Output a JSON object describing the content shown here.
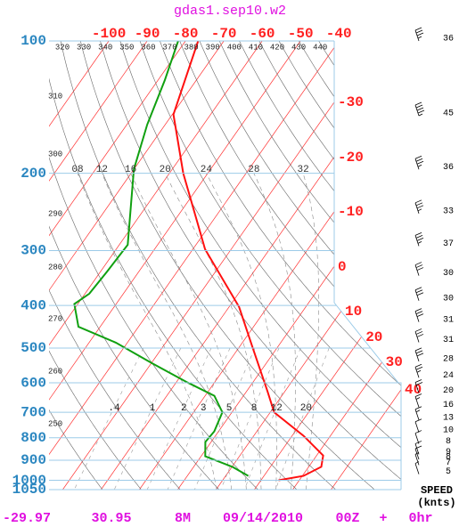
{
  "chart_data": {
    "type": "skew-t",
    "title": "gdas1.sep10.w2",
    "ylim": [
      100,
      1050
    ],
    "y_log": true,
    "yticks": [
      100,
      200,
      300,
      400,
      500,
      600,
      700,
      800,
      900,
      1000,
      1050
    ],
    "xlim": [
      -115.6,
      -41.2
    ],
    "xticks_top": [
      -100,
      -90,
      -80,
      -70,
      -60,
      -50,
      -40
    ],
    "xticks_right": [
      -30,
      -20,
      -10,
      0,
      10,
      20,
      30,
      40
    ],
    "theta_labels_top": [
      320,
      330,
      340,
      350,
      360,
      370,
      380,
      390,
      400,
      410,
      420,
      430,
      440
    ],
    "theta_labels_left": [
      310,
      300,
      290,
      280,
      270,
      260,
      250
    ],
    "moist_labels": [
      {
        "value": 8,
        "label": "08"
      },
      12,
      16,
      20,
      24,
      28,
      32
    ],
    "mixing_labels": [
      {
        "value": 0.4,
        "label": ".4"
      },
      1,
      2,
      3,
      5,
      8,
      12,
      20
    ],
    "series": [
      {
        "color": "#ff1010",
        "pressure": [
          100,
          147,
          200,
          298,
          403,
          497,
          628,
          700,
          792,
          878,
          932,
          977,
          1000
        ],
        "values": [
          -76.7,
          -69.7,
          -56.4,
          -36.8,
          -17.4,
          -6.6,
          5.5,
          11,
          23,
          31.7,
          33.3,
          30.3,
          24.6
        ]
      },
      {
        "color": "#10a010",
        "pressure": [
          100,
          123,
          155,
          196,
          291,
          335,
          376,
          397,
          447,
          486,
          541,
          599,
          642,
          700,
          774,
          818,
          882,
          932,
          977
        ],
        "values": [
          -81.9,
          -78.2,
          -74.7,
          -70,
          -57.8,
          -58.3,
          -58.9,
          -60.9,
          -55.7,
          -43,
          -29.9,
          -17,
          -7.6,
          -2.5,
          -1.1,
          -1.5,
          1.1,
          10.1,
          15.9
        ]
      }
    ],
    "wind": {
      "pressure": [
        100,
        148,
        196,
        247,
        293,
        342,
        390,
        436,
        485,
        536,
        584,
        633,
        682,
        729,
        778,
        826,
        873,
        896,
        923,
        968
      ],
      "speed": [
        36,
        45,
        36,
        33,
        37,
        30,
        30,
        31,
        31,
        28,
        24,
        20,
        16,
        13,
        10,
        8,
        9,
        8,
        7,
        5
      ]
    },
    "speed_label": "SPEED",
    "speed_unit": "(knts)",
    "footer": [
      "-29.97",
      "30.95",
      "8M",
      "09/14/2010",
      "00Z",
      "+",
      "0hr"
    ]
  }
}
